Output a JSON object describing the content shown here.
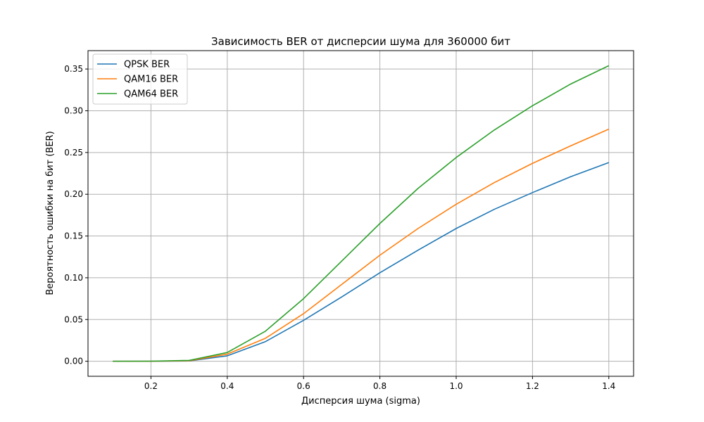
{
  "chart_data": {
    "type": "line",
    "title": "Зависимость BER от дисперсии шума для 360000 бит",
    "xlabel": "Дисперсия шума (sigma)",
    "ylabel": "Вероятность ошибки на бит (BER)",
    "xlim": [
      0.035,
      1.465
    ],
    "ylim": [
      -0.018,
      0.372
    ],
    "xticks": [
      0.2,
      0.4,
      0.6,
      0.8,
      1.0,
      1.2,
      1.4
    ],
    "xtick_labels": [
      "0.2",
      "0.4",
      "0.6",
      "0.8",
      "1.0",
      "1.2",
      "1.4"
    ],
    "yticks": [
      0.0,
      0.05,
      0.1,
      0.15,
      0.2,
      0.25,
      0.3,
      0.35
    ],
    "ytick_labels": [
      "0.00",
      "0.05",
      "0.10",
      "0.15",
      "0.20",
      "0.25",
      "0.30",
      "0.35"
    ],
    "grid": true,
    "legend_position": "top-left",
    "x": [
      0.1,
      0.2,
      0.3,
      0.4,
      0.5,
      0.6,
      0.7,
      0.8,
      0.9,
      1.0,
      1.1,
      1.2,
      1.3,
      1.4
    ],
    "series": [
      {
        "name": "QPSK BER",
        "color": "#1f77b4",
        "values": [
          0.0,
          0.0,
          0.0004,
          0.0065,
          0.0235,
          0.049,
          0.077,
          0.106,
          0.133,
          0.159,
          0.182,
          0.202,
          0.221,
          0.238
        ]
      },
      {
        "name": "QAM16 BER",
        "color": "#ff7f0e",
        "values": [
          0.0,
          0.0,
          0.0006,
          0.0085,
          0.0275,
          0.057,
          0.092,
          0.127,
          0.159,
          0.188,
          0.214,
          0.237,
          0.258,
          0.278
        ]
      },
      {
        "name": "QAM64 BER",
        "color": "#2ca02c",
        "values": [
          0.0,
          0.0001,
          0.001,
          0.0105,
          0.036,
          0.075,
          0.12,
          0.165,
          0.207,
          0.244,
          0.277,
          0.306,
          0.332,
          0.354
        ]
      }
    ]
  }
}
